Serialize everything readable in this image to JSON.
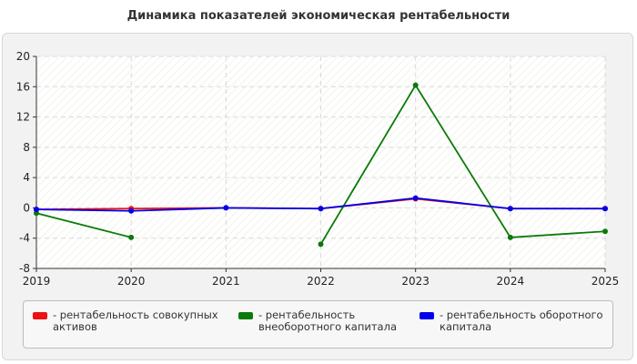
{
  "title": "Динамика показателей экономическая рентабельности",
  "chart_data": {
    "type": "line",
    "title": "Динамика показателей экономическая рентабельности",
    "x": [
      "2019",
      "2020",
      "2021",
      "2022",
      "2023",
      "2024",
      "2025"
    ],
    "ylim": [
      -8,
      20
    ],
    "yticks": [
      20,
      16,
      12,
      8,
      4,
      0,
      -4,
      -8
    ],
    "grid": true,
    "legend_position": "bottom",
    "series": [
      {
        "name": "рентабельность совокупных активов",
        "color": "#ee1111",
        "values": [
          -0.2,
          -0.1,
          0.0,
          -0.1,
          1.2,
          -0.1,
          -0.1
        ]
      },
      {
        "name": "рентабельность внеоборотного капитала",
        "color": "#0b7a0b",
        "values": [
          -0.7,
          -3.9,
          null,
          -4.8,
          16.2,
          -3.9,
          -3.1
        ]
      },
      {
        "name": "рентабельность оборотного капитала",
        "color": "#0000ee",
        "values": [
          -0.2,
          -0.4,
          0.0,
          -0.1,
          1.3,
          -0.1,
          -0.1
        ]
      }
    ]
  },
  "legend": {
    "items": [
      {
        "line1": "- рентабельность совокупных",
        "line2": "активов"
      },
      {
        "line1": "- рентабельность",
        "line2": "внеоборотного капитала"
      },
      {
        "line1": "- рентабельность оборотного",
        "line2": "капитала"
      }
    ]
  }
}
